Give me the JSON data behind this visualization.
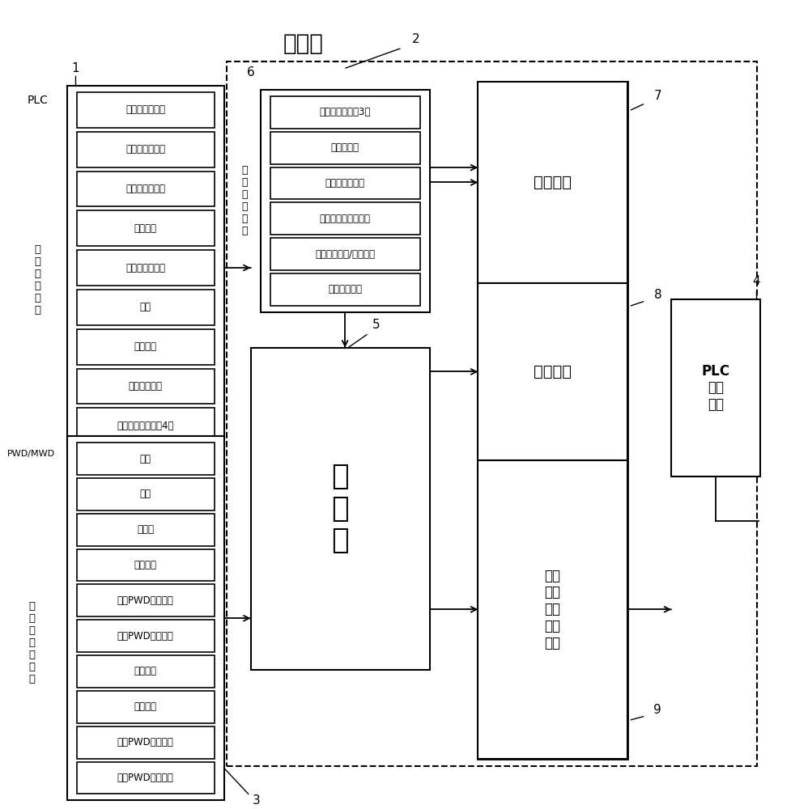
{
  "bg_color": "#ffffff",
  "block1_items": [
    "钻井液出口温度",
    "钻井液出口流量",
    "钻井泥浆泵排量",
    "立管压力",
    "旋转控制头压力",
    "套压",
    "井口压力",
    "节流阀后压力",
    "泥浆罐液位传感器4个"
  ],
  "block1_label": "PLC\n数\n据\n采\n集\n模\n块",
  "block1_side_label": "PLC",
  "block3_items": [
    "钻压",
    "井深",
    "井垂深",
    "钻头位置",
    "实时PWD压力数器",
    "下载PWD压力数器",
    "大钩高度",
    "大钩悬重",
    "实时PWD井底温度",
    "下载PWD井底温度"
  ],
  "block3_label": "PWD/MWD\n工\n具\n计\n算\n机\n数\n据",
  "block6_items": [
    "钻井泵缸套尺寸3个",
    "钻井液参数",
    "井身结构及尺寸",
    "钻具组合结构及尺寸",
    "设置井底压力/当量密度",
    "井口目标压力"
  ],
  "block6_label": "数\n据\n输\n入\n系\n统",
  "block5_label": "数\n据\n库",
  "block7_label": "数字显示",
  "block8_label": "图形显示",
  "block9_label": "选择\n计算\n比较\n决策\n设置",
  "block4_label": "PLC\n执行\n系统",
  "title": "工控机"
}
